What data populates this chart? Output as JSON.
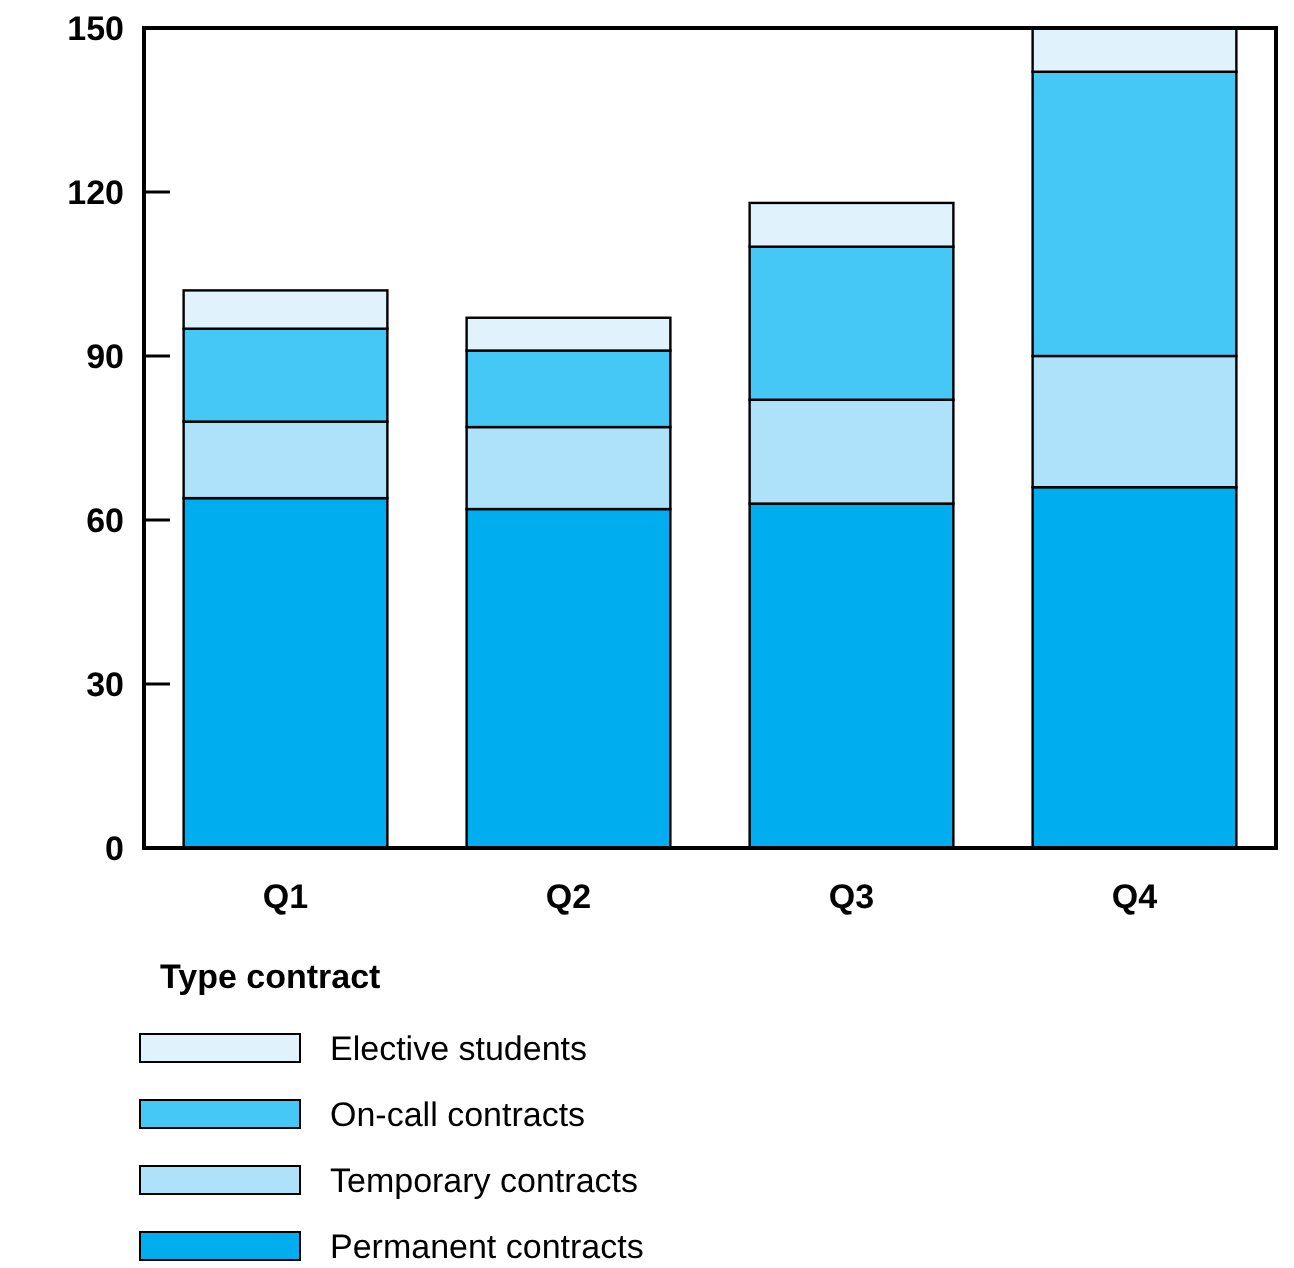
{
  "chart_data": {
    "type": "bar",
    "stacked": true,
    "categories": [
      "Q1",
      "Q2",
      "Q3",
      "Q4"
    ],
    "series": [
      {
        "name": "Permanent contracts",
        "color": "#00aeef",
        "values": [
          64,
          62,
          63,
          66
        ]
      },
      {
        "name": "Temporary contracts",
        "color": "#aee1fa",
        "values": [
          14,
          15,
          19,
          24
        ]
      },
      {
        "name": "On-call contracts",
        "color": "#45c8f5",
        "values": [
          17,
          14,
          28,
          52
        ]
      },
      {
        "name": "Elective students",
        "color": "#e0f3fd",
        "values": [
          7,
          6,
          8,
          8
        ]
      }
    ],
    "ylim": [
      0,
      150
    ],
    "yticks": [
      0,
      30,
      60,
      90,
      120,
      150
    ],
    "grid": false,
    "legend": "bottom",
    "legend_title": "Type contract"
  }
}
